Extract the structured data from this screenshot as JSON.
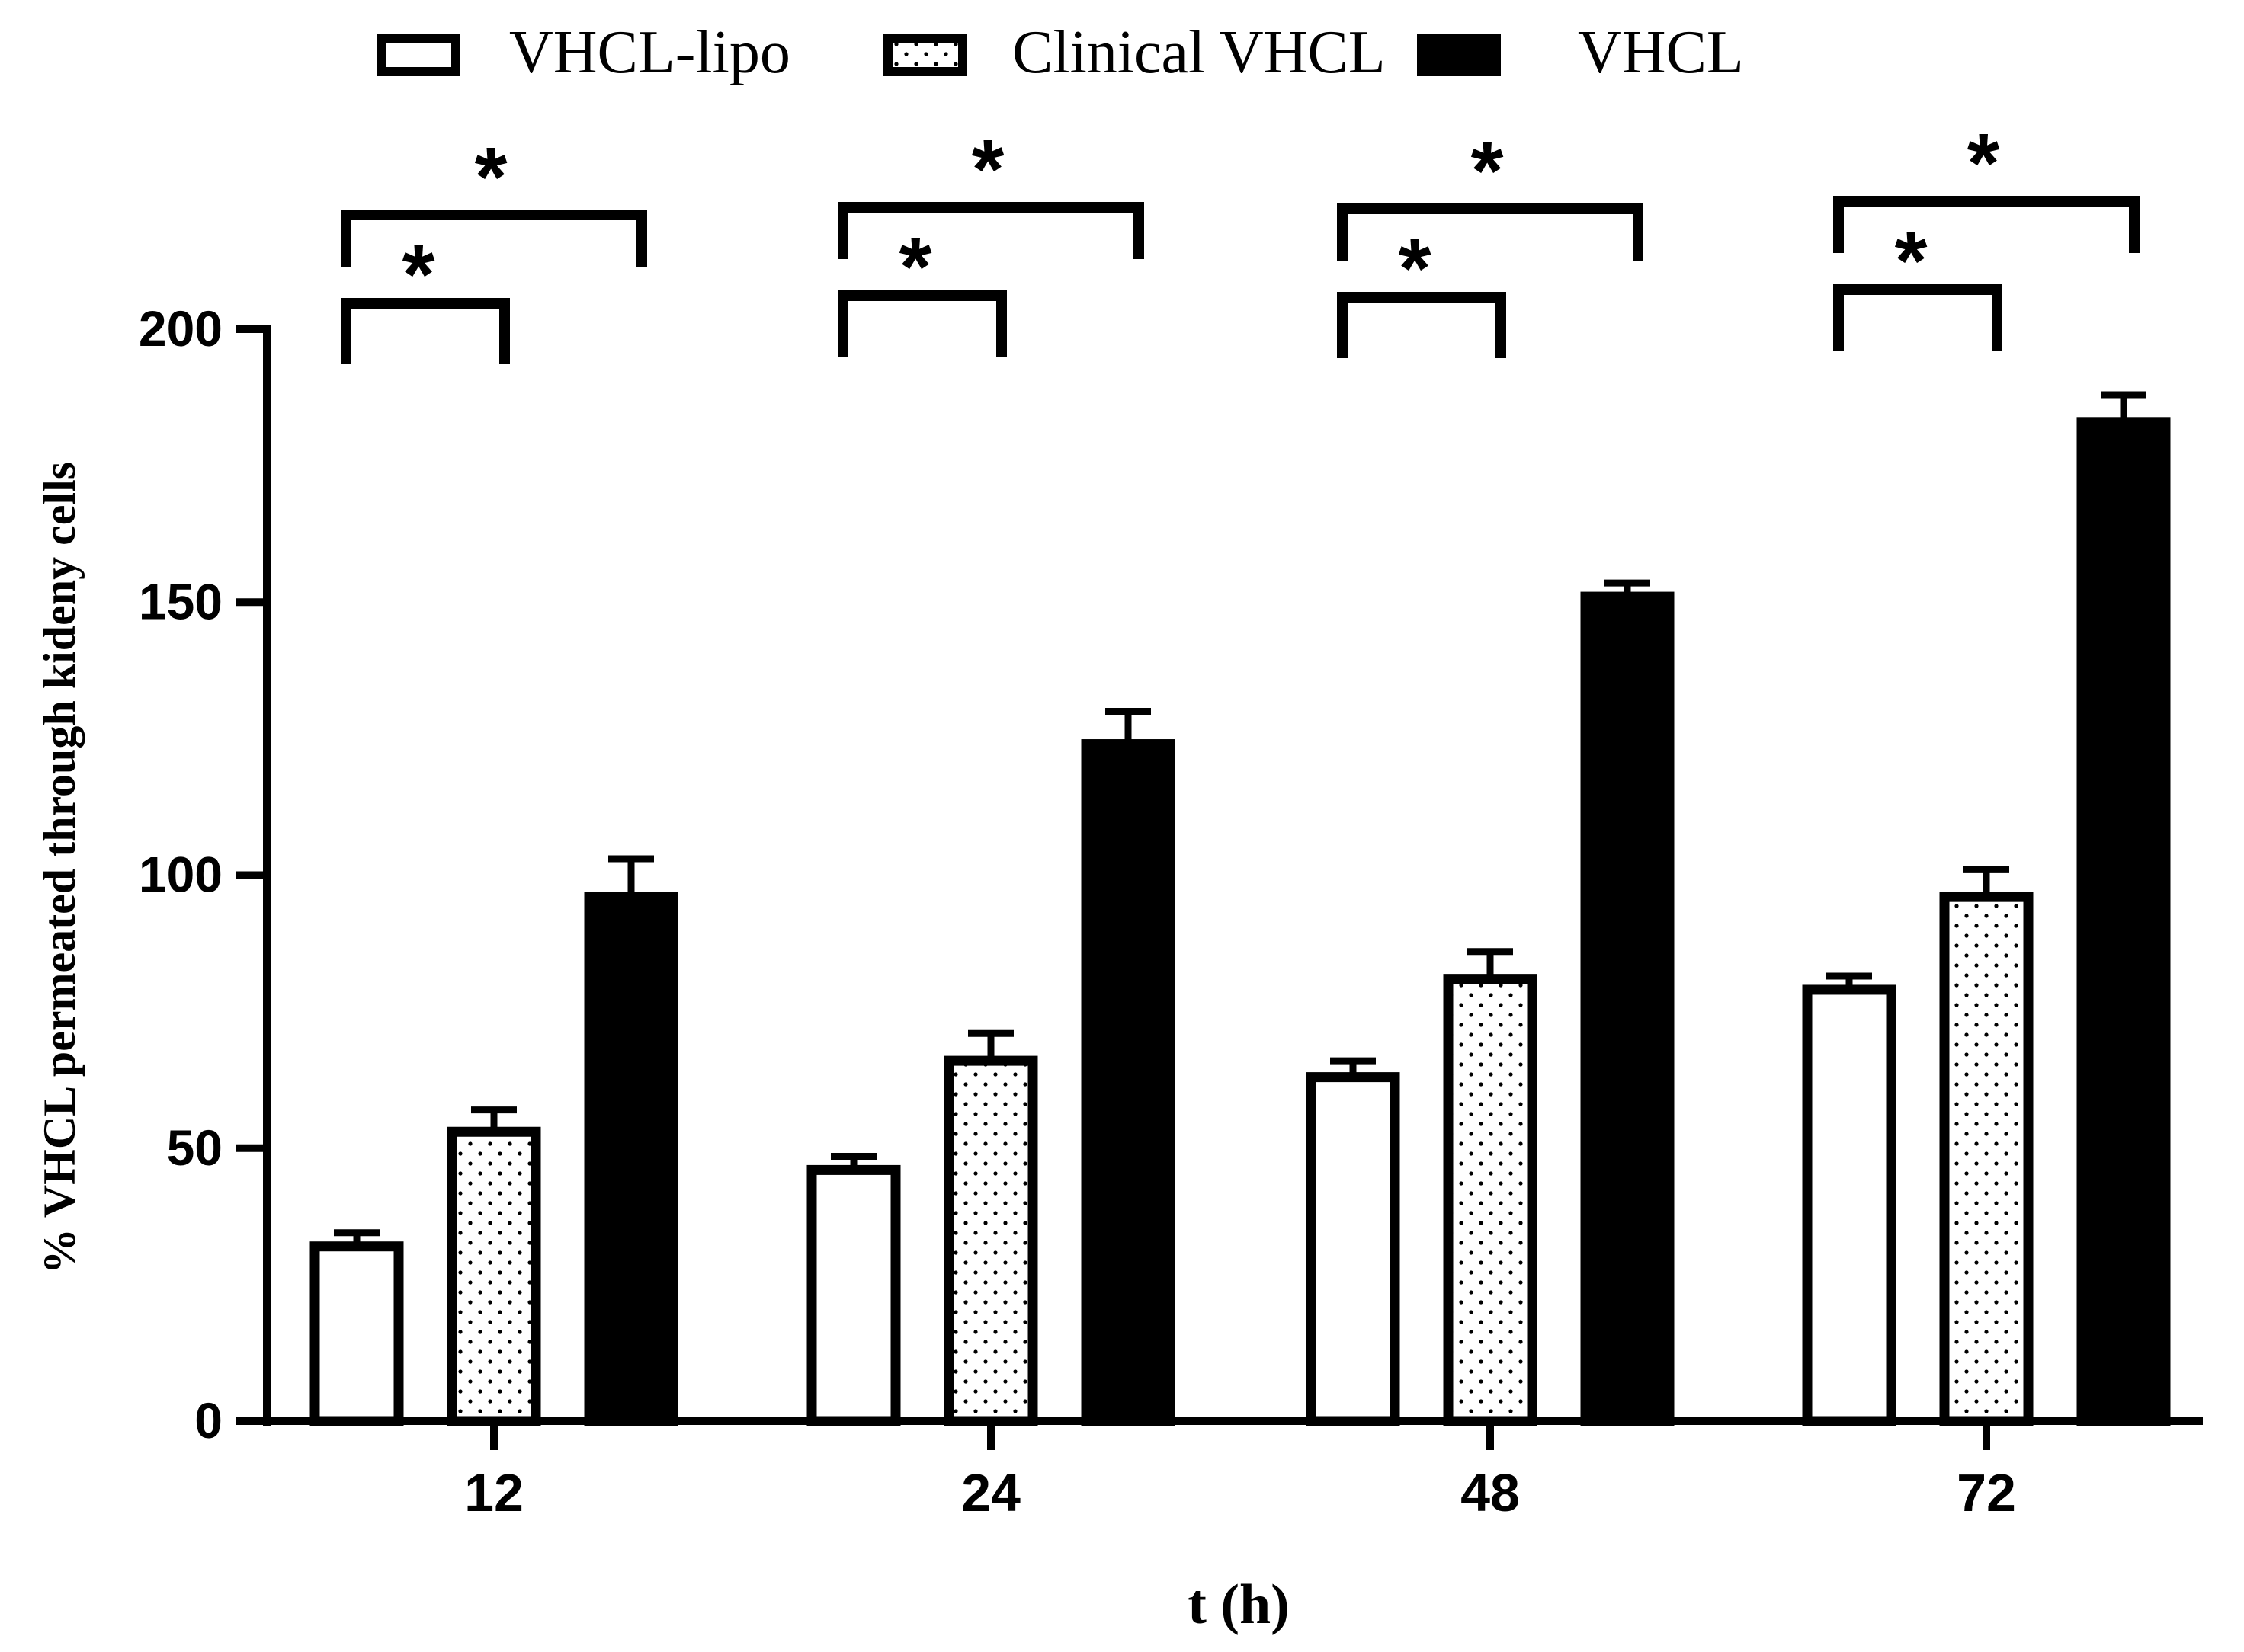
{
  "chart_data": {
    "type": "bar",
    "title": "",
    "xlabel": "t (h)",
    "ylabel": "% VHCL permeated through kideny cells",
    "categories": [
      "12",
      "24",
      "48",
      "72"
    ],
    "ylim": [
      0,
      200
    ],
    "yticks": [
      0,
      50,
      100,
      150,
      200
    ],
    "ytick_labels": [
      "0",
      "50",
      "100",
      "150",
      "200"
    ],
    "series": [
      {
        "name": "VHCL-lipo",
        "pattern": "hollow",
        "values": [
          32,
          46,
          63,
          79
        ],
        "errors": [
          2.5,
          2.5,
          3,
          2.5
        ]
      },
      {
        "name": "Clinical VHCL",
        "pattern": "dotted",
        "values": [
          53,
          66,
          81,
          96
        ],
        "errors": [
          4,
          5,
          5,
          5
        ]
      },
      {
        "name": "VHCL",
        "pattern": "solid",
        "values": [
          96,
          124,
          151,
          183
        ],
        "errors": [
          7,
          6,
          2.5,
          5
        ]
      }
    ],
    "legend": {
      "position": "top",
      "items": [
        "VHCL-lipo",
        "Clinical VHCL",
        "VHCL"
      ]
    },
    "annotations": [
      {
        "category": "12",
        "comparison": "VHCL-lipo vs Clinical VHCL",
        "label": "*"
      },
      {
        "category": "12",
        "comparison": "VHCL-lipo vs VHCL",
        "label": "*"
      },
      {
        "category": "24",
        "comparison": "VHCL-lipo vs Clinical VHCL",
        "label": "*"
      },
      {
        "category": "24",
        "comparison": "VHCL-lipo vs VHCL",
        "label": "*"
      },
      {
        "category": "48",
        "comparison": "VHCL-lipo vs Clinical VHCL",
        "label": "*"
      },
      {
        "category": "48",
        "comparison": "VHCL-lipo vs VHCL",
        "label": "*"
      },
      {
        "category": "72",
        "comparison": "VHCL-lipo vs Clinical VHCL",
        "label": "*"
      },
      {
        "category": "72",
        "comparison": "VHCL-lipo vs VHCL",
        "label": "*"
      }
    ],
    "colors": {
      "axis": "#000000",
      "solid": "#000000",
      "hollow": "#ffffff",
      "dots": "#000000"
    }
  }
}
